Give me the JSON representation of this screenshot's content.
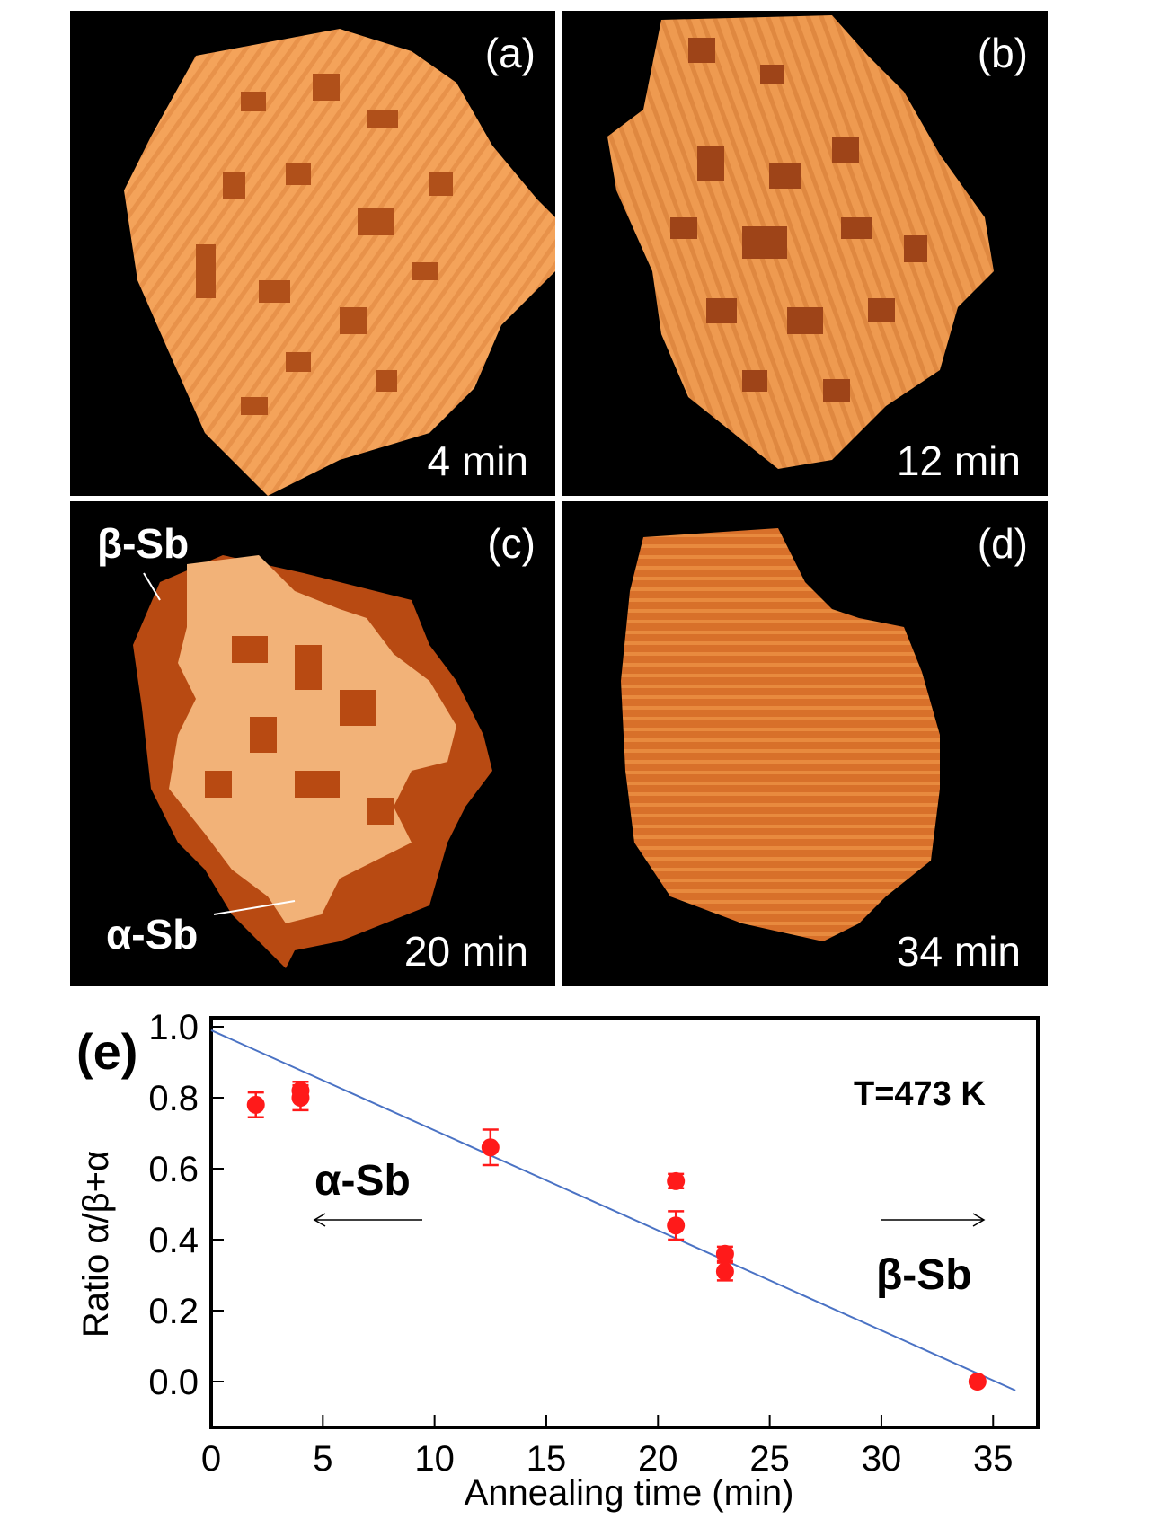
{
  "panels": [
    {
      "label": "(a)",
      "time": "4 min"
    },
    {
      "label": "(b)",
      "time": "12 min"
    },
    {
      "label": "(c)",
      "time": "20 min"
    },
    {
      "label": "(d)",
      "time": "34 min"
    }
  ],
  "panel_c_annotations": {
    "beta": "β-Sb",
    "alpha": "α-Sb"
  },
  "colors": {
    "light": "#f6a55c",
    "mid": "#e07a2e",
    "dark": "#b84a12",
    "point": "#ff1a1a",
    "fit": "#4a72c4"
  },
  "chart_data": {
    "type": "scatter",
    "panel_label": "(e)",
    "xlabel": "Annealing time (min)",
    "ylabel": "Ratio α/β+α",
    "xlim": [
      0,
      37
    ],
    "ylim": [
      0,
      1.0
    ],
    "xticks": [
      "0",
      "5",
      "10",
      "15",
      "20",
      "25",
      "30",
      "35"
    ],
    "yticks": [
      "0.0",
      "0.2",
      "0.4",
      "0.6",
      "0.8",
      "1.0"
    ],
    "annotation_temp": "T=473 K",
    "annotation_alpha": "α-Sb",
    "annotation_beta": "β-Sb",
    "points": [
      {
        "x": 2,
        "y": 0.78,
        "err": 0.035
      },
      {
        "x": 4,
        "y": 0.82,
        "err": 0.025
      },
      {
        "x": 4,
        "y": 0.8,
        "err": 0.035
      },
      {
        "x": 12.5,
        "y": 0.66,
        "err": 0.05
      },
      {
        "x": 20.8,
        "y": 0.565,
        "err": 0.02
      },
      {
        "x": 20.8,
        "y": 0.44,
        "err": 0.04
      },
      {
        "x": 23,
        "y": 0.36,
        "err": 0.02
      },
      {
        "x": 23,
        "y": 0.31,
        "err": 0.025
      },
      {
        "x": 34.3,
        "y": 0.0,
        "err": 0.0
      }
    ],
    "fit_line": {
      "x": [
        0,
        36
      ],
      "y": [
        0.99,
        -0.025
      ]
    }
  }
}
